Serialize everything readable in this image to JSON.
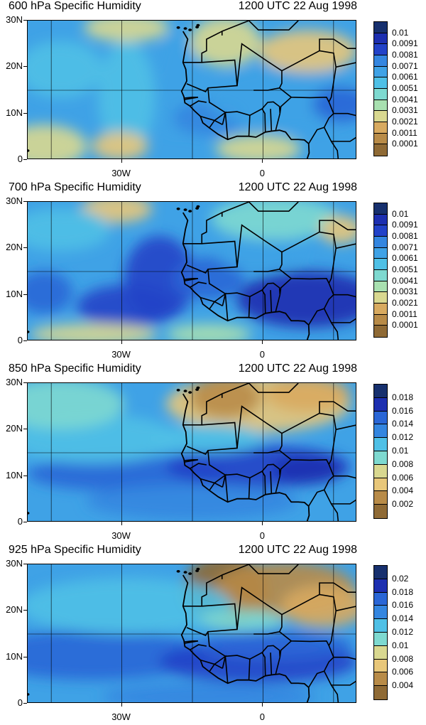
{
  "panels": [
    {
      "title": "600 hPa Specific Humidity",
      "time": "1200 UTC 22 Aug 1998",
      "yticks": [
        "30N",
        "20N",
        "10N",
        "0"
      ],
      "xticks": [
        "30W",
        "0"
      ],
      "cbar_labels": [
        "0.01",
        "0.0091",
        "0.0081",
        "0.0071",
        "0.0061",
        "0.0051",
        "0.0041",
        "0.0031",
        "0.0021",
        "0.0011",
        "0.0001"
      ],
      "cbar_colors": [
        "#17306e",
        "#1d2fb0",
        "#2242c8",
        "#2a66d6",
        "#3486e0",
        "#3fa2e6",
        "#4fc0e6",
        "#7ed9d0",
        "#a8e0b0",
        "#d9d890",
        "#e8c77a",
        "#d8aa60",
        "#b88b48",
        "#8f6a35"
      ],
      "style": "mid"
    },
    {
      "title": "700 hPa Specific Humidity",
      "time": "1200 UTC 22 Aug 1998",
      "yticks": [
        "30N",
        "20N",
        "10N",
        "0"
      ],
      "xticks": [
        "30W",
        "0"
      ],
      "cbar_labels": [
        "0.01",
        "0.0091",
        "0.0081",
        "0.0071",
        "0.0061",
        "0.0051",
        "0.0041",
        "0.0031",
        "0.0021",
        "0.0011",
        "0.0001"
      ],
      "cbar_colors": [
        "#17306e",
        "#1d2fb0",
        "#2242c8",
        "#2a66d6",
        "#3486e0",
        "#3fa2e6",
        "#4fc0e6",
        "#7ed9d0",
        "#a8e0b0",
        "#d9d890",
        "#e8c77a",
        "#d8aa60",
        "#b88b48",
        "#8f6a35"
      ],
      "style": "moist"
    },
    {
      "title": "850 hPa Specific Humidity",
      "time": "1200 UTC 22 Aug 1998",
      "yticks": [
        "30N",
        "20N",
        "10N",
        "0"
      ],
      "xticks": [
        "30W",
        "0"
      ],
      "cbar_labels": [
        "0.018",
        "0.016",
        "0.014",
        "0.012",
        "0.01",
        "0.008",
        "0.006",
        "0.004",
        "0.002"
      ],
      "cbar_colors": [
        "#17306e",
        "#1d2fb0",
        "#2242c8",
        "#2a66d6",
        "#3486e0",
        "#3fa2e6",
        "#4fc0e6",
        "#7ed9d0",
        "#a8e0b0",
        "#d9d890",
        "#e8c77a",
        "#d8aa60",
        "#b88b48",
        "#8f6a35"
      ],
      "style": "low"
    },
    {
      "title": "925 hPa Specific Humidity",
      "time": "1200 UTC 22 Aug 1998",
      "yticks": [
        "30N",
        "20N",
        "10N",
        "0"
      ],
      "xticks": [
        "30W",
        "0"
      ],
      "cbar_labels": [
        "0.02",
        "0.018",
        "0.016",
        "0.014",
        "0.012",
        "0.01",
        "0.008",
        "0.006",
        "0.004"
      ],
      "cbar_colors": [
        "#17306e",
        "#1d2fb0",
        "#2242c8",
        "#2a66d6",
        "#3486e0",
        "#3fa2e6",
        "#4fc0e6",
        "#7ed9d0",
        "#a8e0b0",
        "#d9d890",
        "#e8c77a",
        "#d8aa60",
        "#b88b48",
        "#8f6a35"
      ],
      "style": "surface"
    }
  ]
}
